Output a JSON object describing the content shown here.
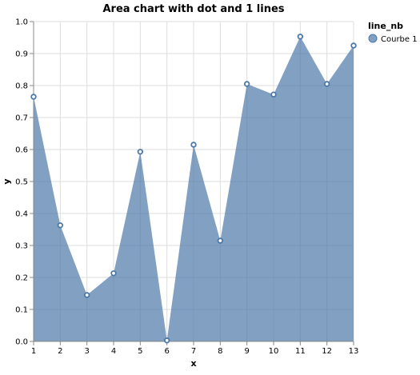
{
  "chart_data": {
    "type": "area",
    "title": "Area chart with dot and 1 lines",
    "xlabel": "x",
    "ylabel": "y",
    "x": [
      1,
      2,
      3,
      4,
      5,
      6,
      7,
      8,
      9,
      10,
      11,
      12,
      13
    ],
    "series": [
      {
        "name": "Courbe 1",
        "values": [
          0.765,
          0.363,
          0.145,
          0.213,
          0.593,
          0.003,
          0.615,
          0.315,
          0.805,
          0.772,
          0.953,
          0.805,
          0.925
        ]
      }
    ],
    "xlim": [
      1,
      13
    ],
    "ylim": [
      0,
      1
    ],
    "xticks": [
      1,
      2,
      3,
      4,
      5,
      6,
      7,
      8,
      9,
      10,
      11,
      12,
      13
    ],
    "yticks": [
      "0.0",
      "0.1",
      "0.2",
      "0.3",
      "0.4",
      "0.5",
      "0.6",
      "0.7",
      "0.8",
      "0.9",
      "1.0"
    ],
    "grid": true,
    "markers": "dot",
    "legend": {
      "title": "line_nb",
      "placement": "top-right"
    },
    "colors": {
      "area_fill": "#4c78a8",
      "point_stroke": "#4c78a8",
      "point_fill": "#ffffff"
    }
  }
}
